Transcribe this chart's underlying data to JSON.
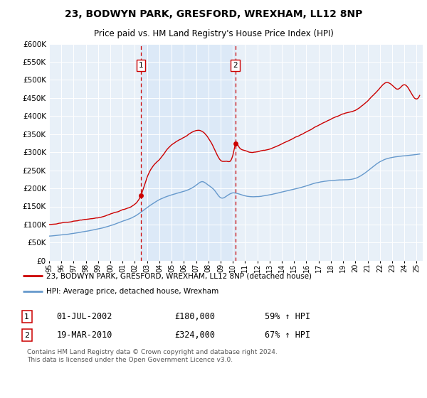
{
  "title": "23, BODWYN PARK, GRESFORD, WREXHAM, LL12 8NP",
  "subtitle": "Price paid vs. HM Land Registry's House Price Index (HPI)",
  "ylim": [
    0,
    600000
  ],
  "yticks": [
    0,
    50000,
    100000,
    150000,
    200000,
    250000,
    300000,
    350000,
    400000,
    450000,
    500000,
    550000,
    600000
  ],
  "background_color": "#e8f0f8",
  "shaded_color": "#dce9f7",
  "legend_label_red": "23, BODWYN PARK, GRESFORD, WREXHAM, LL12 8NP (detached house)",
  "legend_label_blue": "HPI: Average price, detached house, Wrexham",
  "marker1_x": 2002.5,
  "marker1_price": 180000,
  "marker2_x": 2010.2,
  "marker2_price": 324000,
  "footer": "Contains HM Land Registry data © Crown copyright and database right 2024.\nThis data is licensed under the Open Government Licence v3.0.",
  "red_color": "#cc0000",
  "blue_color": "#6699cc",
  "dashed_color": "#cc0000",
  "xlim_start": 1995.0,
  "xlim_end": 2025.5
}
